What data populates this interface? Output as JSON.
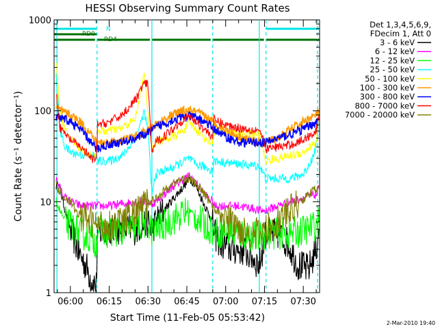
{
  "chart_data": {
    "type": "line",
    "title": "HESSI Observing Summary Count Rates",
    "xlabel": "Start Time (11-Feb-05 05:53:42)",
    "ylabel": "Count Rate (s⁻¹ detector⁻¹)",
    "yscale": "log",
    "ylim": [
      1,
      1000
    ],
    "xlim": [
      -6.3,
      96.3
    ],
    "y_ticks": [
      "1",
      "10",
      "100",
      "1000"
    ],
    "y_tick_values": [
      1,
      10,
      100,
      1000
    ],
    "x_ticks": [
      "06:00",
      "06:15",
      "06:30",
      "06:45",
      "07:00",
      "07:15",
      "07:30"
    ],
    "x_tick_minutes": [
      0,
      15,
      30,
      45,
      60,
      75,
      90
    ],
    "grid": false,
    "legend_position": "right",
    "legend_header": [
      "Det 1,3,4,5,6,9,",
      "FDecim 1, Att 0"
    ],
    "footer": "2-Mar-2010 19:40",
    "flags": [
      {
        "label": "N",
        "color": "#00e5e5",
        "segments": [
          [
            -6.3,
            10.3
          ],
          [
            75.6,
            96.3
          ]
        ]
      },
      {
        "label": "RD0",
        "color": "#007000",
        "segments": [
          [
            -6.3,
            10.3
          ]
        ]
      },
      {
        "label": "RD4",
        "color": "#007000",
        "segments": [
          [
            -6.3,
            10.3
          ],
          [
            10.3,
            31.5
          ],
          [
            31.5,
            55.0
          ],
          [
            55.0,
            75.6
          ],
          [
            75.6,
            96.3
          ]
        ]
      }
    ],
    "vlines": [
      {
        "x": -5.2,
        "style": "solid",
        "color": "#00e5e5"
      },
      {
        "x": 10.3,
        "style": "dashed",
        "color": "#00e5e5"
      },
      {
        "x": 31.5,
        "style": "solid",
        "color": "#00e5e5"
      },
      {
        "x": 55.0,
        "style": "dashed",
        "color": "#00e5e5"
      },
      {
        "x": 73.0,
        "style": "solid",
        "color": "#00e5e5"
      },
      {
        "x": 75.6,
        "style": "dashed",
        "color": "#00e5e5"
      },
      {
        "x": 95.5,
        "style": "dashed",
        "color": "#00e5e5"
      }
    ],
    "series": [
      {
        "name": "3 - 6 keV",
        "color": "#000000",
        "x": [
          -5.5,
          -4,
          -2,
          0,
          2,
          4,
          6,
          8,
          10,
          10.5,
          15,
          20,
          25,
          30,
          31.5,
          33,
          36,
          40,
          44,
          46,
          48,
          52,
          55,
          55.5,
          58,
          62,
          66,
          70,
          73,
          75.5,
          80,
          84,
          88,
          92,
          95,
          96
        ],
        "y": [
          15,
          14,
          8,
          5,
          3.5,
          2.5,
          2,
          1.4,
          1.2,
          4.5,
          5,
          5,
          5,
          6,
          5,
          6,
          8,
          11,
          15,
          18,
          16,
          9,
          6,
          4.5,
          3.5,
          3,
          3,
          2.5,
          2,
          4.5,
          4.5,
          3.5,
          2,
          1.8,
          3,
          5
        ]
      },
      {
        "name": "6 - 12 keV",
        "color": "#ff00ff",
        "x": [
          -5.5,
          -4,
          -2,
          0,
          4,
          8,
          10,
          10.5,
          15,
          20,
          25,
          30,
          31.5,
          33,
          36,
          40,
          44,
          46,
          48,
          52,
          55,
          55.5,
          60,
          65,
          70,
          73,
          75.5,
          80,
          85,
          90,
          95,
          96
        ],
        "y": [
          18,
          14,
          11,
          10,
          9,
          9,
          9,
          9,
          9,
          9.5,
          10,
          10,
          9.5,
          10,
          12,
          15,
          18,
          19,
          17,
          12,
          10,
          9,
          9,
          9,
          8.5,
          8,
          8,
          9,
          10,
          11,
          12,
          14
        ]
      },
      {
        "name": "12 - 25 keV",
        "color": "#00ff00",
        "x": [
          -5.5,
          -4,
          -2,
          0,
          4,
          8,
          10,
          10.5,
          15,
          20,
          25,
          30,
          31.5,
          33,
          36,
          40,
          44,
          46,
          48,
          52,
          55,
          55.5,
          60,
          65,
          70,
          73,
          75.5,
          80,
          85,
          90,
          95,
          96
        ],
        "y": [
          10,
          8,
          6,
          5.5,
          4.5,
          4,
          3.5,
          5,
          4.5,
          5,
          5.2,
          6,
          4.8,
          5,
          5.5,
          6.5,
          7.5,
          8,
          7,
          5.5,
          5,
          4.5,
          4.8,
          4.5,
          4.2,
          4,
          4.5,
          4.5,
          4.5,
          4.8,
          5.5,
          6
        ]
      },
      {
        "name": "25 - 50 keV",
        "color": "#00ffff",
        "x": [
          -5.5,
          -4,
          -2,
          0,
          4,
          8,
          10,
          10.5,
          15,
          20,
          24,
          27,
          28.5,
          30,
          31.5,
          33,
          36,
          40,
          44,
          46,
          48,
          52,
          55,
          55.5,
          60,
          65,
          70,
          73,
          75.5,
          80,
          85,
          90,
          92,
          94,
          95.5,
          96
        ],
        "y": [
          250,
          60,
          40,
          35,
          33,
          32,
          32,
          28,
          28,
          32,
          45,
          70,
          100,
          60,
          12,
          20,
          22,
          24,
          28,
          30,
          26,
          24,
          22,
          28,
          27,
          26,
          25,
          25,
          18,
          18,
          18,
          20,
          25,
          32,
          50,
          90
        ]
      },
      {
        "name": "50 - 100 keV",
        "color": "#ffff00",
        "x": [
          -5.5,
          -4,
          -2,
          0,
          4,
          8,
          10,
          10.5,
          15,
          20,
          25,
          28.5,
          30,
          31.5,
          33,
          36,
          40,
          44,
          46,
          48,
          52,
          55,
          55.5,
          60,
          65,
          70,
          73,
          75.5,
          80,
          85,
          90,
          95,
          96
        ],
        "y": [
          350,
          100,
          60,
          50,
          38,
          32,
          30,
          60,
          60,
          65,
          80,
          250,
          100,
          40,
          45,
          48,
          52,
          62,
          75,
          65,
          50,
          44,
          60,
          58,
          56,
          55,
          55,
          28,
          30,
          32,
          35,
          45,
          95
        ]
      },
      {
        "name": "100 - 300 keV",
        "color": "#ff9900",
        "x": [
          -5.5,
          -4,
          -2,
          0,
          4,
          8,
          10,
          15,
          20,
          25,
          30,
          33,
          36,
          40,
          44,
          46,
          48,
          52,
          55,
          60,
          65,
          70,
          73,
          76,
          80,
          85,
          90,
          95,
          96
        ],
        "y": [
          110,
          100,
          95,
          90,
          75,
          55,
          45,
          45,
          47,
          52,
          60,
          70,
          80,
          92,
          100,
          100,
          98,
          88,
          75,
          62,
          52,
          47,
          45,
          45,
          50,
          62,
          76,
          90,
          100
        ]
      },
      {
        "name": "300 - 800 keV",
        "color": "#0000ff",
        "x": [
          -5.5,
          -4,
          -2,
          0,
          4,
          8,
          10,
          15,
          20,
          25,
          30,
          33,
          36,
          40,
          44,
          46,
          48,
          52,
          55,
          60,
          65,
          70,
          73,
          76,
          80,
          85,
          90,
          95,
          96
        ],
        "y": [
          85,
          82,
          80,
          76,
          62,
          45,
          38,
          43,
          45,
          50,
          57,
          65,
          72,
          80,
          86,
          87,
          85,
          76,
          65,
          52,
          45,
          45,
          45,
          45,
          50,
          55,
          63,
          75,
          80
        ]
      },
      {
        "name": "800 - 7000 keV",
        "color": "#ff0000",
        "x": [
          -5.5,
          -4,
          -2,
          0,
          4,
          8,
          10,
          10.5,
          15,
          20,
          25,
          28.5,
          30,
          31.5,
          33,
          36,
          40,
          44,
          46,
          48,
          52,
          55,
          55.5,
          60,
          65,
          70,
          73,
          75.5,
          80,
          85,
          90,
          95,
          96
        ],
        "y": [
          160,
          65,
          55,
          48,
          40,
          30,
          28,
          70,
          75,
          90,
          130,
          200,
          190,
          35,
          45,
          52,
          65,
          82,
          86,
          78,
          62,
          52,
          80,
          70,
          65,
          62,
          62,
          38,
          40,
          42,
          48,
          60,
          90
        ]
      },
      {
        "name": "7000 - 20000 keV",
        "color": "#808000",
        "x": [
          -5.5,
          -4,
          -2,
          0,
          2,
          4,
          6,
          8,
          10,
          15,
          20,
          25,
          30,
          33,
          36,
          40,
          44,
          46,
          48,
          52,
          55,
          58,
          62,
          66,
          70,
          73,
          76,
          80,
          84,
          88,
          92,
          95,
          96
        ],
        "y": [
          15,
          13,
          11,
          10,
          8,
          7,
          6.5,
          6,
          5.5,
          5.5,
          6,
          7.5,
          9.5,
          11,
          13,
          16,
          18,
          18,
          16,
          12,
          9,
          7,
          6,
          5,
          4.5,
          4.5,
          5,
          6,
          7.5,
          9.5,
          12,
          14,
          15
        ]
      }
    ]
  }
}
